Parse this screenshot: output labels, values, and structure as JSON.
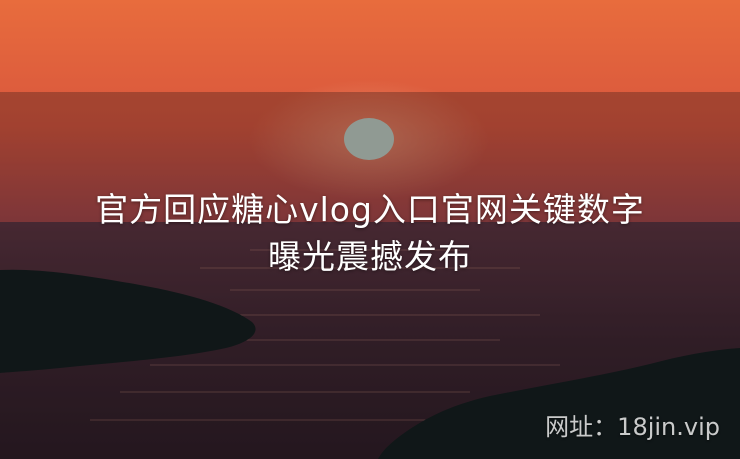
{
  "image": {
    "scene": "sunset over sea with dark headlands",
    "colors": {
      "sky_top": "#e76a3f",
      "sky_bottom": "#a3464a",
      "sea": "#3b2530",
      "sun": "#bfd2c6",
      "land": "#0f1d1c"
    }
  },
  "overlay": {
    "title_line1": "官方回应糖心vlog入口官网关键数字",
    "title_line2": "曝光震撼发布"
  },
  "watermark": {
    "text": "网址：18jin.vip"
  }
}
